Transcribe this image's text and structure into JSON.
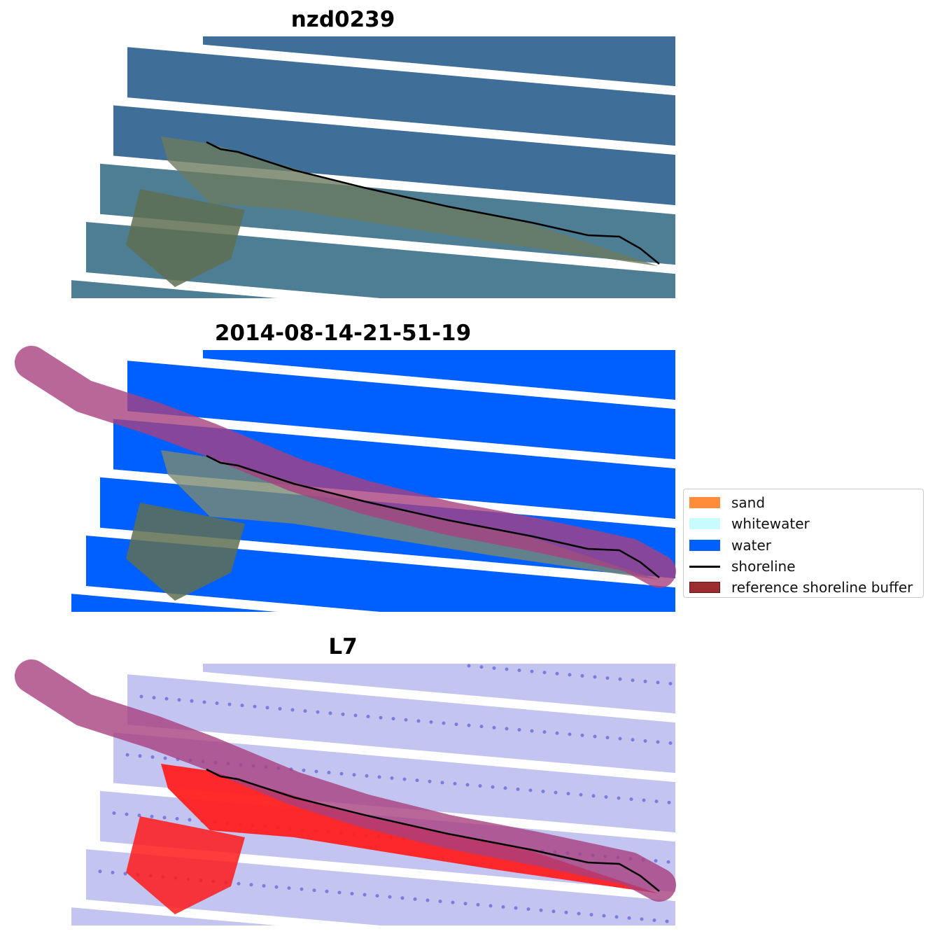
{
  "panels": [
    {
      "title": "nzd0239",
      "style": "rgb"
    },
    {
      "title": "2014-08-14-21-51-19",
      "style": "classified"
    },
    {
      "title": "L7",
      "style": "index"
    }
  ],
  "legend": {
    "items": [
      {
        "label": "sand",
        "color": "#ff8c3a",
        "kind": "patch"
      },
      {
        "label": "whitewater",
        "color": "#c8fbfb",
        "kind": "patch"
      },
      {
        "label": "water",
        "color": "#0060ff",
        "kind": "patch"
      },
      {
        "label": "shoreline",
        "color": "#000000",
        "kind": "line"
      },
      {
        "label": "reference shoreline buffer",
        "color": "#9b2d30",
        "kind": "patch"
      }
    ]
  }
}
